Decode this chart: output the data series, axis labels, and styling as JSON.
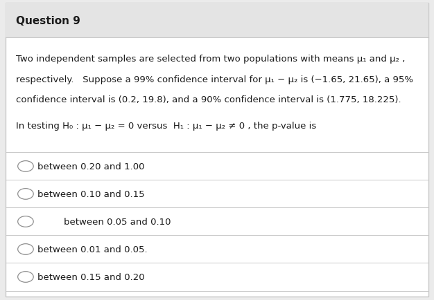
{
  "title": "Question 9",
  "background_color": "#ebebeb",
  "card_color": "#ffffff",
  "title_bg_color": "#e4e4e4",
  "border_color": "#c8c8c8",
  "text_color": "#1a1a1a",
  "para_line1": "Two independent samples are selected from two populations with means μ₁ and μ₂ ,",
  "para_line2": "respectively.   Suppose a 99% confidence interval for μ₁ − μ₂ is (−1.65, 21.65), a 95%",
  "para_line3": "confidence interval is (0.2, 19.8), and a 90% confidence interval is (1.775, 18.225).",
  "testing_line": "In testing H₀ : μ₁ − μ₂ = 0 versus  H₁ : μ₁ − μ₂ ≠ 0 , the p-value is",
  "options": [
    {
      "text": "between 0.20 and 1.00",
      "indent": false
    },
    {
      "text": "between 0.10 and 0.15",
      "indent": false
    },
    {
      "text": "between 0.05 and 0.10",
      "indent": true
    },
    {
      "text": "between 0.01 and 0.05.",
      "indent": false
    },
    {
      "text": "between 0.15 and 0.20",
      "indent": false
    }
  ],
  "font_size_title": 11,
  "font_size_body": 9.5,
  "font_size_options": 9.5
}
